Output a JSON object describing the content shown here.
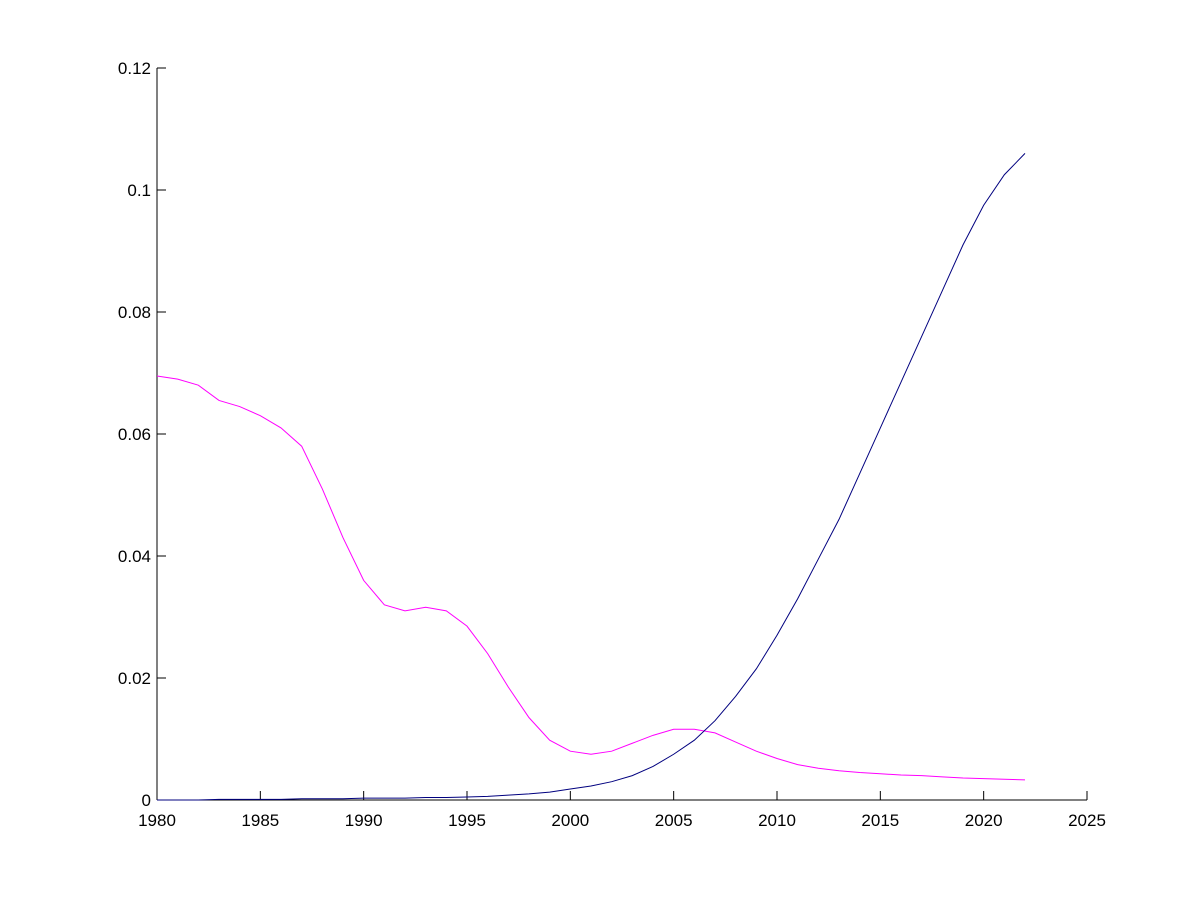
{
  "chart_data": {
    "type": "line",
    "x": [
      1980,
      1981,
      1982,
      1983,
      1984,
      1985,
      1986,
      1987,
      1988,
      1989,
      1990,
      1991,
      1992,
      1993,
      1994,
      1995,
      1996,
      1997,
      1998,
      1999,
      2000,
      2001,
      2002,
      2003,
      2004,
      2005,
      2006,
      2007,
      2008,
      2009,
      2010,
      2011,
      2012,
      2013,
      2014,
      2015,
      2016,
      2017,
      2018,
      2019,
      2020,
      2021,
      2022
    ],
    "series": [
      {
        "color": "#ff00ff",
        "values": [
          0.0695,
          0.069,
          0.068,
          0.0655,
          0.0645,
          0.063,
          0.061,
          0.058,
          0.051,
          0.043,
          0.036,
          0.032,
          0.031,
          0.0316,
          0.031,
          0.0285,
          0.024,
          0.0185,
          0.0135,
          0.0098,
          0.008,
          0.0075,
          0.008,
          0.0093,
          0.0106,
          0.0116,
          0.0116,
          0.011,
          0.0095,
          0.008,
          0.0068,
          0.0058,
          0.0052,
          0.0048,
          0.0045,
          0.0043,
          0.0041,
          0.004,
          0.0038,
          0.0036,
          0.0035,
          0.0034,
          0.0033
        ]
      },
      {
        "color": "#00007f",
        "values": [
          0,
          0,
          0,
          0.0001,
          0.0001,
          0.0001,
          0.0001,
          0.0002,
          0.0002,
          0.0002,
          0.0003,
          0.0003,
          0.0003,
          0.0004,
          0.0004,
          0.0005,
          0.0006,
          0.0008,
          0.001,
          0.0013,
          0.0018,
          0.0023,
          0.003,
          0.004,
          0.0055,
          0.0075,
          0.0098,
          0.013,
          0.017,
          0.0215,
          0.027,
          0.033,
          0.0395,
          0.046,
          0.0535,
          0.061,
          0.0685,
          0.076,
          0.0835,
          0.091,
          0.0975,
          0.1025,
          0.106
        ]
      }
    ],
    "xlim": [
      1980,
      2025
    ],
    "xticks": [
      1980,
      1985,
      1990,
      1995,
      2000,
      2005,
      2010,
      2015,
      2020,
      2025
    ],
    "ylim": [
      0,
      0.12
    ],
    "yticks": [
      0,
      0.02,
      0.04,
      0.06,
      0.08,
      0.1,
      0.12
    ]
  }
}
